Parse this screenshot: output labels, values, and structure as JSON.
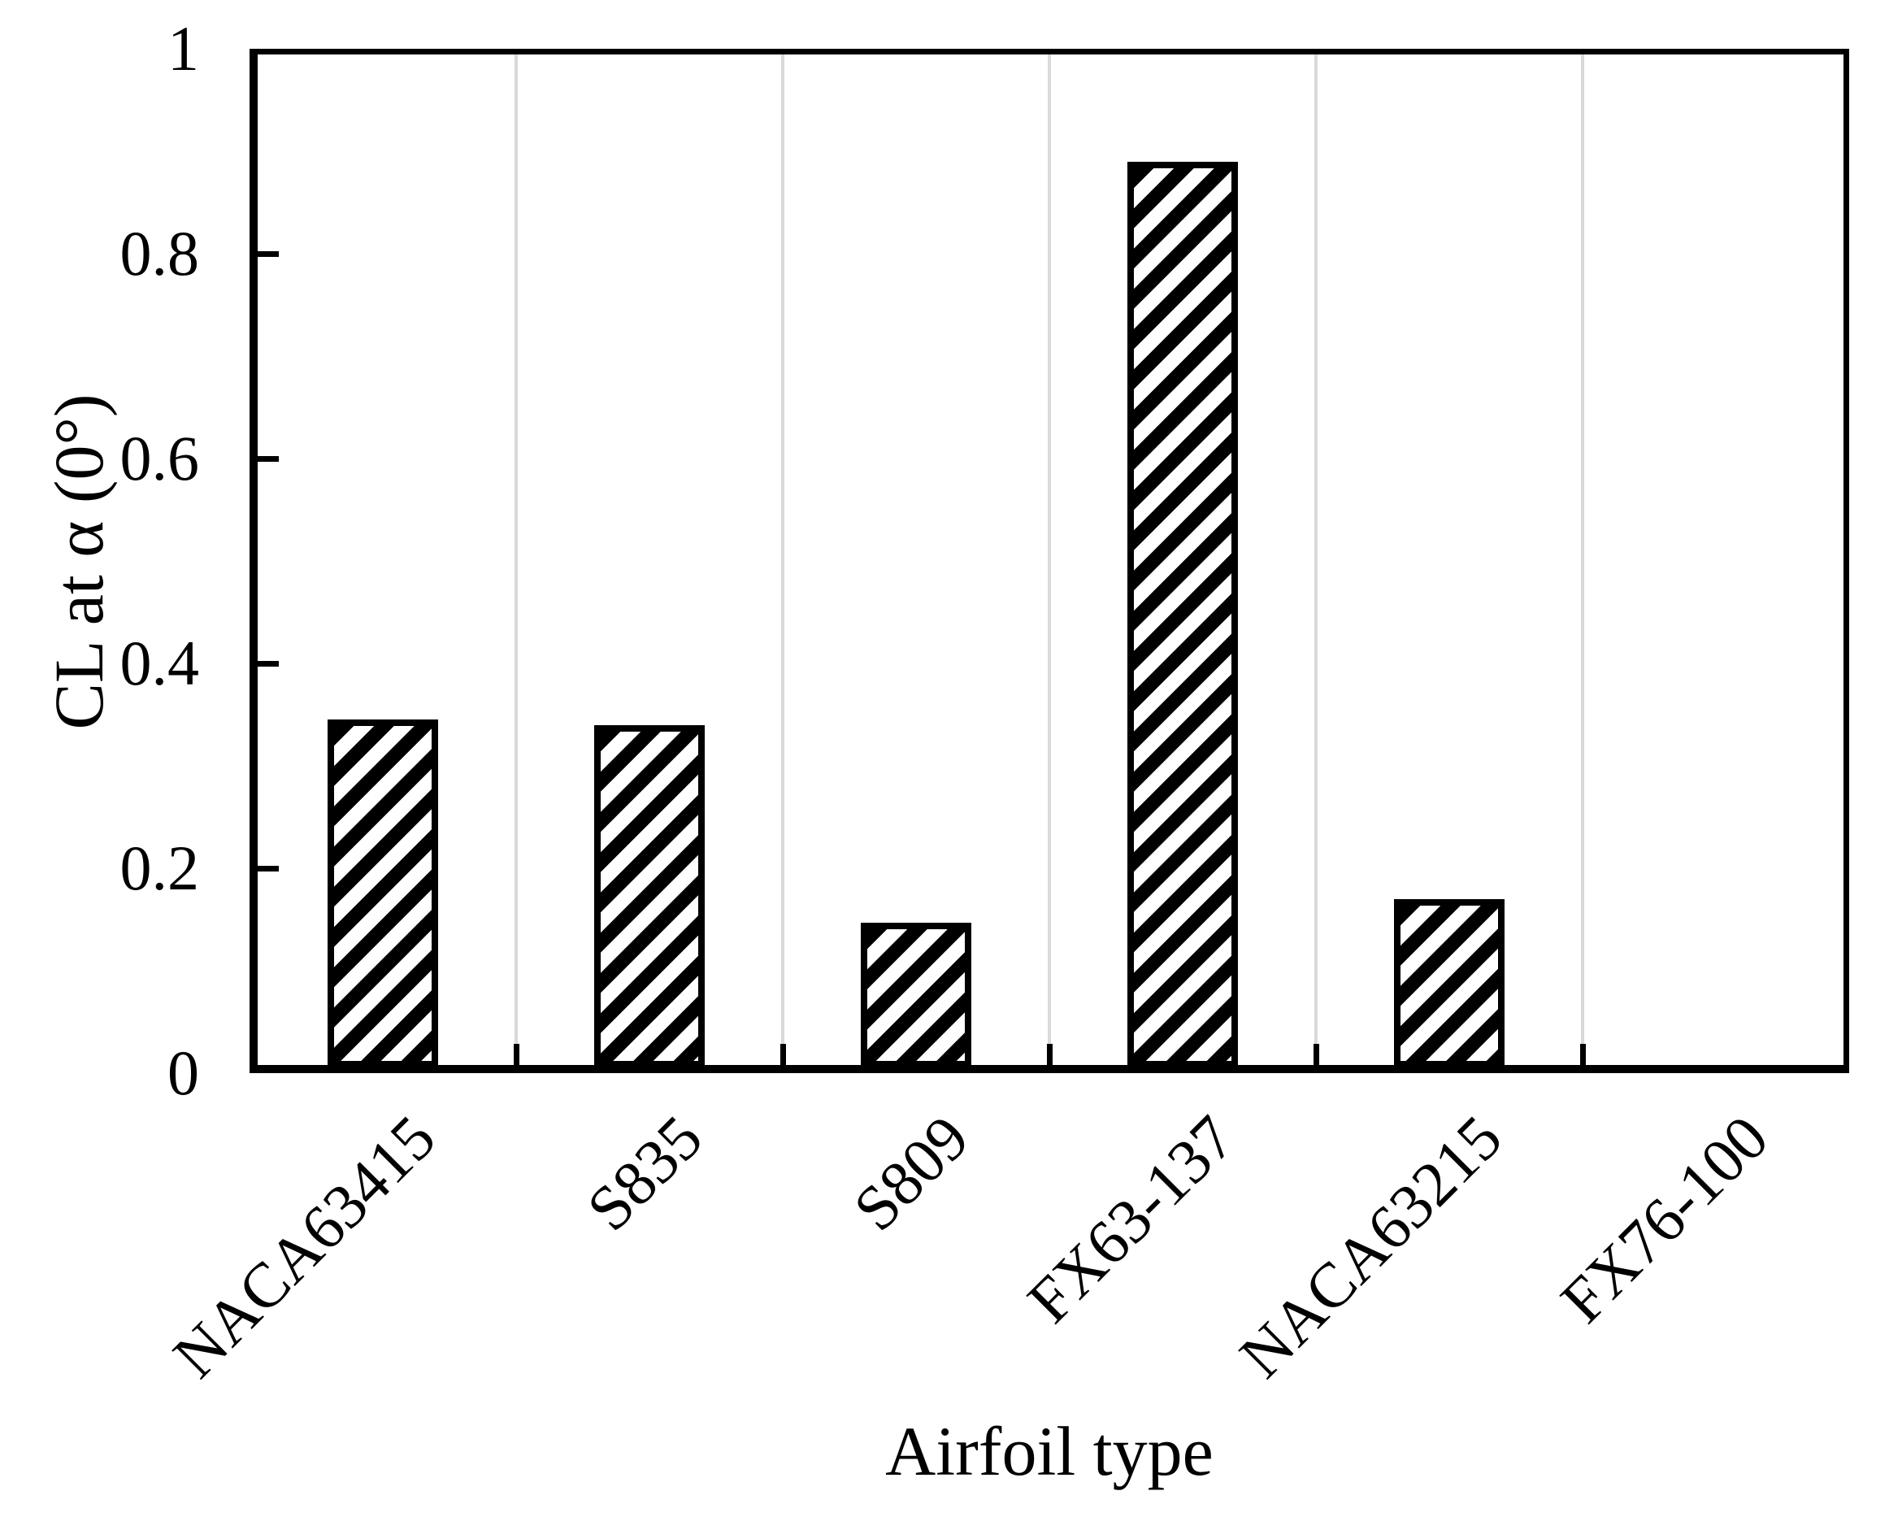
{
  "chart_data": {
    "type": "bar",
    "title": "",
    "xlabel": "Airfoil type",
    "ylabel": "CL at α (0°)",
    "categories": [
      "NACA63415",
      "S835",
      "S809",
      "FX63-137",
      "NACA63215",
      "FX76-100"
    ],
    "values": [
      0.345,
      0.34,
      0.147,
      0.89,
      0.17,
      0
    ],
    "ylim": [
      0,
      1
    ],
    "ytick_labels": [
      "0",
      "0.2",
      "0.4",
      "0.6",
      "0.8",
      "1"
    ],
    "legend_position": "none",
    "grid": "vertical lines at category boundaries",
    "bar_style": {
      "fill": "#ffffff",
      "hatch": "forward-diagonal-stripes",
      "hatch_color": "#000000",
      "border_color": "#000000"
    },
    "colors": {
      "foreground": "#000000",
      "background": "#ffffff",
      "gridline": "#d9d9d9"
    }
  }
}
